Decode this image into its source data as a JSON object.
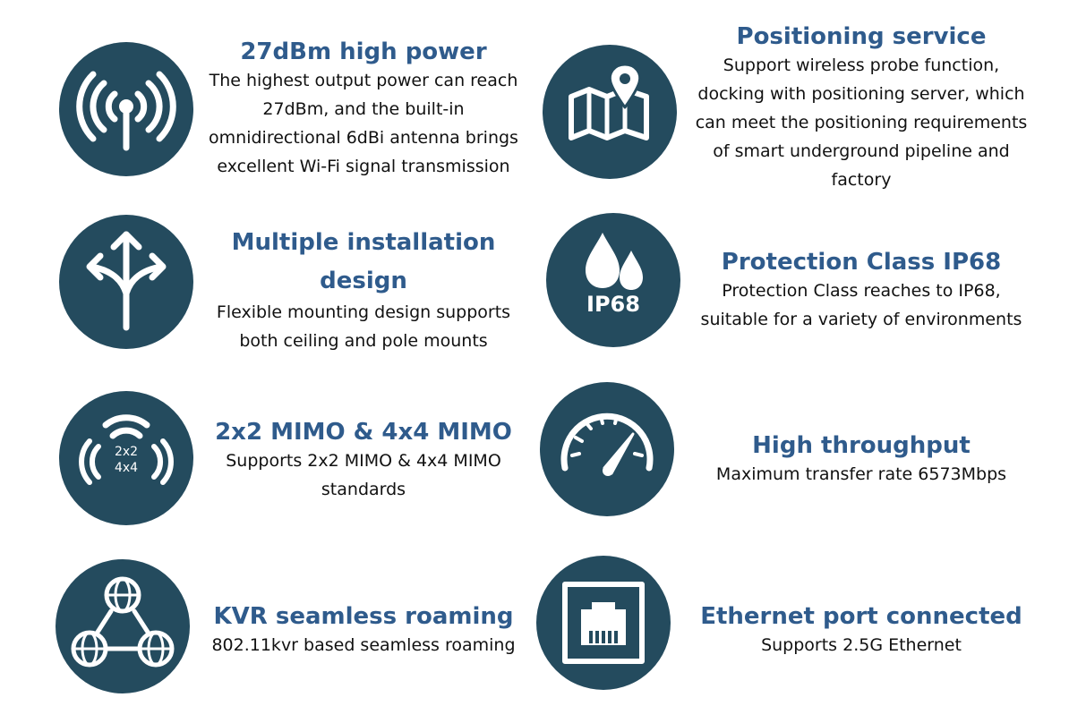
{
  "colors": {
    "circle_background": "#244b5e",
    "title_blue": "#2f5b8c",
    "icon_white": "#ffffff",
    "body_text": "#111111"
  },
  "features": [
    {
      "icon": "antenna-signal-icon",
      "title": "27dBm high power",
      "description": "The highest output power can reach\n27dBm, and the built-in\nomnidirectional 6dBi antenna brings\nexcellent Wi-Fi signal transmission"
    },
    {
      "icon": "map-location-pin-icon",
      "title": "Positioning service",
      "description": "Support wireless probe function,\ndocking with positioning server, which\ncan meet the positioning requirements\nof smart underground pipeline and\nfactory"
    },
    {
      "icon": "split-arrows-icon",
      "title": "Multiple installation\ndesign",
      "description": "Flexible mounting design supports\nboth ceiling and pole mounts"
    },
    {
      "icon": "water-drops-icon",
      "icon_label": "IP68",
      "title": "Protection Class IP68",
      "description": "Protection Class reaches to IP68,\nsuitable for a variety of environments"
    },
    {
      "icon": "mimo-signal-icon",
      "icon_label_line1": "2x2",
      "icon_label_line2": "4x4",
      "title": "2x2 MIMO & 4x4 MIMO",
      "description": "Supports 2x2 MIMO & 4x4 MIMO\nstandards"
    },
    {
      "icon": "speedometer-icon",
      "title": "High throughput",
      "description": "Maximum transfer rate 6573Mbps"
    },
    {
      "icon": "roaming-network-icon",
      "title": "KVR seamless roaming",
      "description": "802.11kvr based seamless roaming"
    },
    {
      "icon": "ethernet-port-icon",
      "title": "Ethernet port connected",
      "description": "Supports 2.5G Ethernet"
    }
  ]
}
